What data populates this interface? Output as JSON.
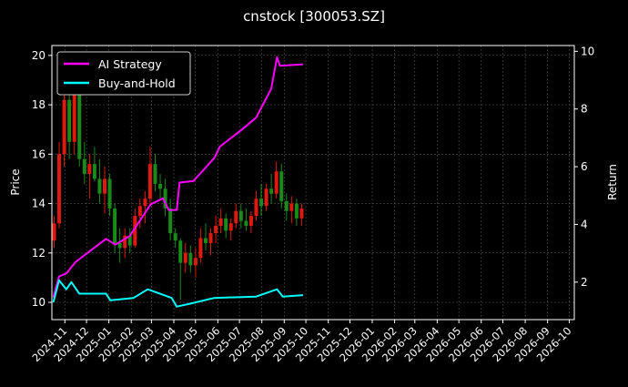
{
  "chart_data": {
    "type": "line",
    "title": "cnstock [300053.SZ]",
    "ylabel_left": "Price",
    "ylabel_right": "Return",
    "xlabel": "",
    "xlim": [
      "2024-10-14",
      "2026-10-08"
    ],
    "ylim_left": [
      9.3,
      20.4
    ],
    "ylim_right": [
      0.7,
      10.2
    ],
    "grid": true,
    "legend_position": "top-left",
    "colors": {
      "background": "#000000",
      "up": "#e0190f",
      "down": "#1a8a1a",
      "ai": "#ff00ff",
      "bh": "#00ffff",
      "grid": "#555555",
      "axis": "#ffffff"
    },
    "x_ticks": [
      "2024-11",
      "2024-12",
      "2025-01",
      "2025-02",
      "2025-03",
      "2025-04",
      "2025-05",
      "2025-06",
      "2025-07",
      "2025-08",
      "2025-09",
      "2025-10",
      "2025-11",
      "2025-12",
      "2026-01",
      "2026-02",
      "2026-03",
      "2026-04",
      "2026-05",
      "2026-06",
      "2026-07",
      "2026-08",
      "2026-09",
      "2026-10"
    ],
    "y_ticks_left": [
      10,
      12,
      14,
      16,
      18,
      20
    ],
    "y_ticks_right": [
      2,
      4,
      6,
      8,
      10
    ],
    "candles_columns": [
      "date",
      "open",
      "high",
      "low",
      "close"
    ],
    "candles": [
      [
        "2024-10-14",
        12.5,
        13.5,
        12.2,
        13.2
      ],
      [
        "2024-10-21",
        13.2,
        16.5,
        13.0,
        16.0
      ],
      [
        "2024-10-28",
        16.0,
        18.8,
        15.5,
        18.2
      ],
      [
        "2024-11-04",
        18.2,
        19.2,
        15.8,
        16.5
      ],
      [
        "2024-11-11",
        16.5,
        19.6,
        16.0,
        18.5
      ],
      [
        "2024-11-18",
        18.5,
        19.0,
        15.5,
        15.8
      ],
      [
        "2024-11-25",
        15.8,
        16.5,
        14.8,
        15.2
      ],
      [
        "2024-12-02",
        15.2,
        16.0,
        14.2,
        15.6
      ],
      [
        "2024-12-09",
        15.6,
        16.3,
        14.9,
        15.0
      ],
      [
        "2024-12-16",
        15.0,
        15.8,
        14.0,
        14.4
      ],
      [
        "2024-12-23",
        14.4,
        15.5,
        13.6,
        15.0
      ],
      [
        "2024-12-30",
        15.0,
        15.2,
        13.5,
        13.8
      ],
      [
        "2025-01-06",
        13.8,
        14.0,
        12.0,
        12.4
      ],
      [
        "2025-01-13",
        12.4,
        13.0,
        11.6,
        12.2
      ],
      [
        "2025-01-20",
        12.2,
        13.0,
        11.8,
        12.7
      ],
      [
        "2025-01-27",
        12.7,
        13.0,
        12.0,
        12.3
      ],
      [
        "2025-02-03",
        12.3,
        13.8,
        12.2,
        13.5
      ],
      [
        "2025-02-10",
        13.5,
        14.2,
        13.0,
        13.9
      ],
      [
        "2025-02-17",
        13.9,
        14.5,
        13.2,
        14.2
      ],
      [
        "2025-02-24",
        14.2,
        16.3,
        14.0,
        15.6
      ],
      [
        "2025-03-03",
        15.6,
        16.0,
        14.5,
        14.8
      ],
      [
        "2025-03-10",
        14.8,
        15.2,
        14.2,
        14.6
      ],
      [
        "2025-03-17",
        14.6,
        15.0,
        13.5,
        13.8
      ],
      [
        "2025-03-24",
        13.8,
        14.2,
        12.5,
        12.8
      ],
      [
        "2025-03-31",
        12.8,
        13.0,
        12.2,
        12.5
      ],
      [
        "2025-04-07",
        12.5,
        12.6,
        10.1,
        11.6
      ],
      [
        "2025-04-14",
        11.6,
        12.4,
        11.2,
        12.0
      ],
      [
        "2025-04-21",
        12.0,
        12.3,
        11.2,
        11.5
      ],
      [
        "2025-04-28",
        11.5,
        12.2,
        11.0,
        11.8
      ],
      [
        "2025-05-05",
        11.8,
        13.0,
        11.6,
        12.6
      ],
      [
        "2025-05-12",
        12.6,
        13.2,
        12.1,
        12.4
      ],
      [
        "2025-05-19",
        12.4,
        13.0,
        11.9,
        12.8
      ],
      [
        "2025-05-26",
        12.8,
        13.5,
        12.4,
        13.1
      ],
      [
        "2025-06-02",
        13.1,
        13.8,
        12.8,
        13.4
      ],
      [
        "2025-06-09",
        13.4,
        13.6,
        12.6,
        12.9
      ],
      [
        "2025-06-16",
        12.9,
        13.4,
        12.5,
        13.2
      ],
      [
        "2025-06-23",
        13.2,
        14.0,
        13.0,
        13.7
      ],
      [
        "2025-06-30",
        13.7,
        14.0,
        13.0,
        13.3
      ],
      [
        "2025-07-07",
        13.3,
        13.8,
        12.9,
        13.1
      ],
      [
        "2025-07-14",
        13.1,
        13.7,
        12.8,
        13.5
      ],
      [
        "2025-07-21",
        13.5,
        14.5,
        13.3,
        14.2
      ],
      [
        "2025-07-28",
        14.2,
        14.8,
        13.5,
        13.9
      ],
      [
        "2025-08-04",
        13.9,
        14.8,
        13.7,
        14.6
      ],
      [
        "2025-08-11",
        14.6,
        15.2,
        14.0,
        14.4
      ],
      [
        "2025-08-18",
        14.4,
        15.7,
        14.2,
        15.3
      ],
      [
        "2025-08-25",
        15.3,
        15.6,
        13.8,
        14.1
      ],
      [
        "2025-09-01",
        14.1,
        14.4,
        13.3,
        13.7
      ],
      [
        "2025-09-08",
        13.7,
        14.3,
        13.2,
        14.0
      ],
      [
        "2025-09-15",
        14.0,
        14.2,
        13.1,
        13.4
      ],
      [
        "2025-09-22",
        13.4,
        14.0,
        13.1,
        13.8
      ]
    ],
    "series": [
      {
        "name": "AI Strategy",
        "axis": "right",
        "x": [
          "2024-10-16",
          "2024-10-24",
          "2024-11-03",
          "2024-11-16",
          "2024-12-28",
          "2025-01-10",
          "2025-01-30",
          "2025-02-28",
          "2025-03-17",
          "2025-03-25",
          "2025-04-05",
          "2025-04-09",
          "2025-04-28",
          "2025-05-27",
          "2025-06-04",
          "2025-07-03",
          "2025-07-24",
          "2025-08-14",
          "2025-08-22",
          "2025-08-26",
          "2025-09-27"
        ],
        "values": [
          1.47,
          2.2,
          2.3,
          2.7,
          3.5,
          3.3,
          3.6,
          4.7,
          4.9,
          4.5,
          4.5,
          5.45,
          5.5,
          6.3,
          6.7,
          7.26,
          7.7,
          8.7,
          9.8,
          9.5,
          9.55
        ]
      },
      {
        "name": "Buy-and-Hold",
        "axis": "right",
        "x": [
          "2024-10-16",
          "2024-10-24",
          "2024-11-03",
          "2024-11-10",
          "2024-11-21",
          "2024-12-28",
          "2025-01-03",
          "2025-02-04",
          "2025-02-24",
          "2025-03-29",
          "2025-04-05",
          "2025-04-23",
          "2025-05-27",
          "2025-07-24",
          "2025-08-22",
          "2025-08-30",
          "2025-09-27"
        ],
        "values": [
          1.3,
          2.06,
          1.75,
          2.0,
          1.6,
          1.6,
          1.37,
          1.45,
          1.75,
          1.45,
          1.15,
          1.25,
          1.45,
          1.5,
          1.75,
          1.5,
          1.55
        ]
      }
    ]
  }
}
